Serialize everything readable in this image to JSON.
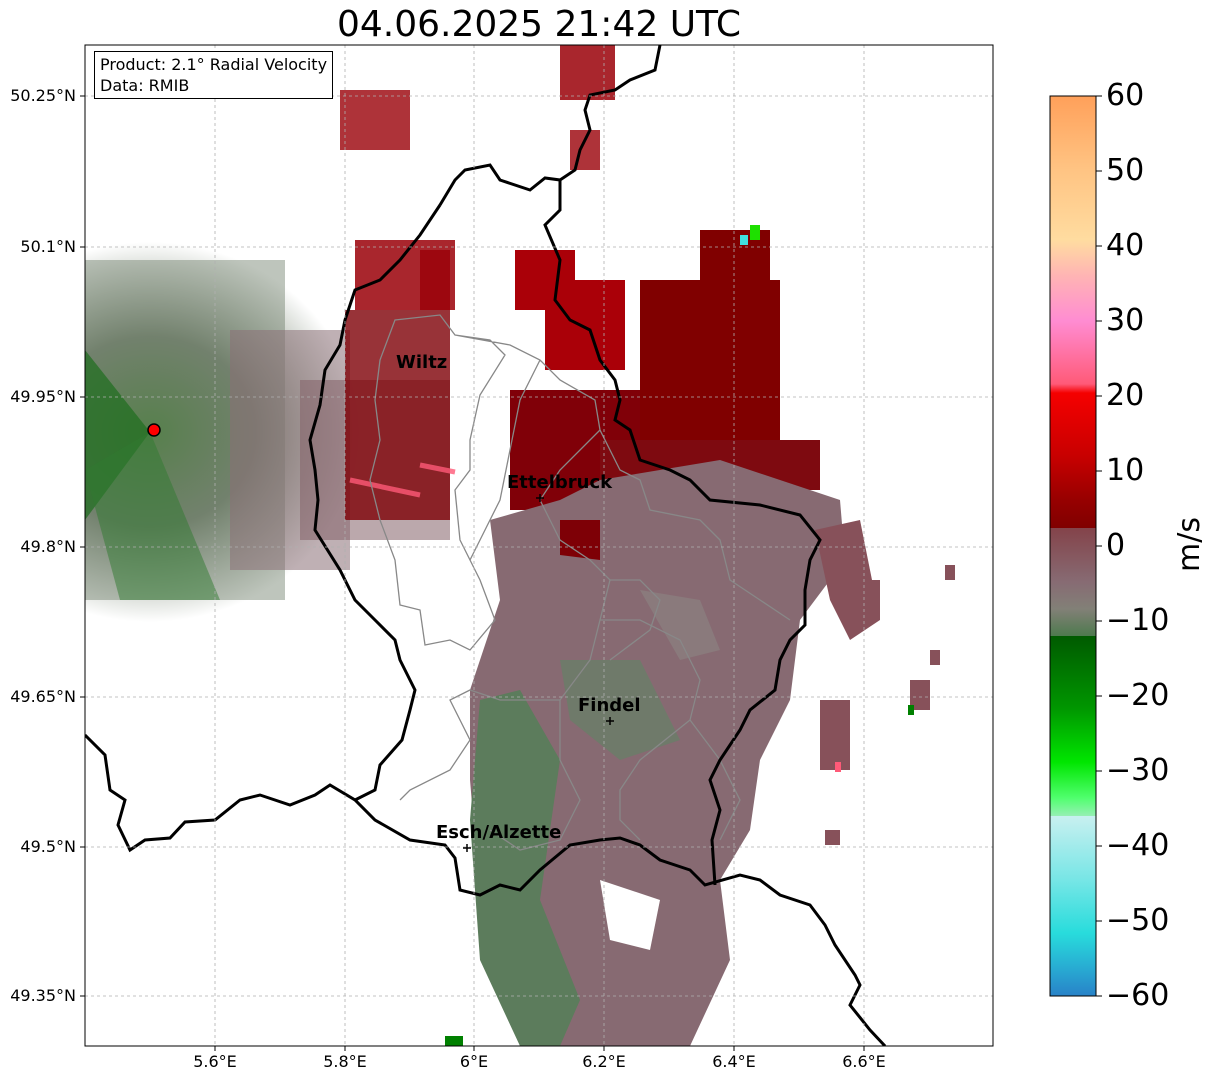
{
  "title": "04.06.2025 21:42 UTC",
  "info": {
    "product": "Product: 2.1° Radial Velocity",
    "data": "Data: RMIB"
  },
  "lat_labels": [
    "50.25°N",
    "50.1°N",
    "49.95°N",
    "49.8°N",
    "49.65°N",
    "49.5°N",
    "49.35°N"
  ],
  "lon_labels": [
    "5.6°E",
    "5.8°E",
    "6°E",
    "6.2°E",
    "6.4°E",
    "6.6°E"
  ],
  "cities": [
    {
      "name": "Wiltz"
    },
    {
      "name": "Ettelbruck"
    },
    {
      "name": "Findel"
    },
    {
      "name": "Esch/Alzette"
    }
  ],
  "colorbar": {
    "unit": "m/s",
    "range": [
      -60,
      60
    ],
    "tick_labels": [
      "60",
      "50",
      "40",
      "30",
      "20",
      "10",
      "0",
      "−10",
      "−20",
      "−30",
      "−40",
      "−50",
      "−60"
    ],
    "palette_top_to_bottom": [
      "#ffa05a",
      "#ffbe78",
      "#ffe096",
      "#ffb4b4",
      "#ff8cc8",
      "#ff5a78",
      "#f20000",
      "#c80000",
      "#a00000",
      "#800000",
      "#80474e",
      "#876b73",
      "#87807a",
      "#5a7d5a",
      "#006400",
      "#009600",
      "#00e600",
      "#50ff64",
      "#a0f0b4",
      "#b4f0f0",
      "#64e6e6",
      "#28dcdc",
      "#28b4c8",
      "#2882c8"
    ]
  },
  "radar_site_color": "#ff0000"
}
